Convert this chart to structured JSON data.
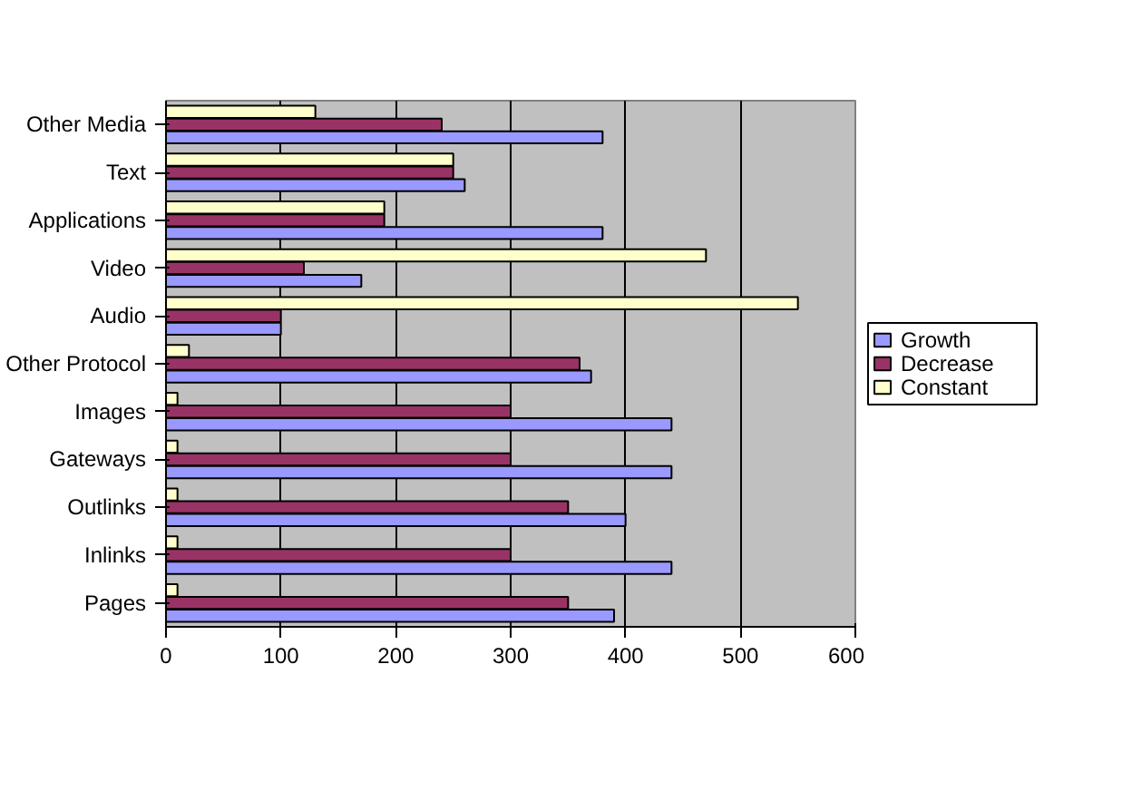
{
  "chart_data": {
    "type": "bar",
    "orientation": "horizontal",
    "categories": [
      "Other Media",
      "Text",
      "Applications",
      "Video",
      "Audio",
      "Other Protocol",
      "Images",
      "Gateways",
      "Outlinks",
      "Inlinks",
      "Pages"
    ],
    "series": [
      {
        "name": "Constant",
        "color": "#ffffcc",
        "values": [
          130,
          250,
          190,
          470,
          550,
          20,
          10,
          10,
          10,
          10,
          10
        ]
      },
      {
        "name": "Decrease",
        "color": "#993366",
        "values": [
          240,
          250,
          190,
          120,
          100,
          360,
          300,
          300,
          350,
          300,
          350
        ]
      },
      {
        "name": "Growth",
        "color": "#9999ff",
        "values": [
          380,
          260,
          380,
          170,
          100,
          370,
          440,
          440,
          400,
          440,
          390
        ]
      }
    ],
    "xlim": [
      0,
      600
    ],
    "xticks": [
      0,
      100,
      200,
      300,
      400,
      500,
      600
    ],
    "grid": "x",
    "legend": "right"
  }
}
